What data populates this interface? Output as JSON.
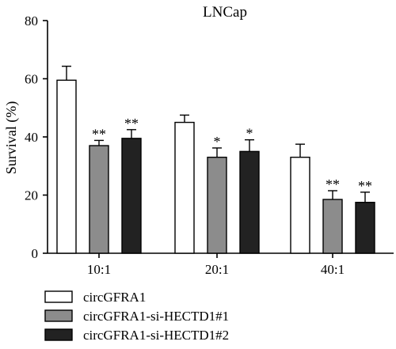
{
  "chart_data": {
    "type": "bar",
    "title": "LNCap",
    "xlabel": "",
    "ylabel": "Survival (%)",
    "ylim": [
      0,
      80
    ],
    "yticks": [
      0,
      20,
      40,
      60,
      80
    ],
    "categories": [
      "10:1",
      "20:1",
      "40:1"
    ],
    "series": [
      {
        "name": "circGFRA1",
        "color": "#ffffff",
        "values": [
          59.5,
          45.0,
          33.0
        ],
        "errors": [
          4.8,
          2.5,
          4.5
        ],
        "annotations": [
          "",
          "",
          ""
        ]
      },
      {
        "name": "circGFRA1-si-HECTD1#1",
        "color": "#8c8c8c",
        "values": [
          37.0,
          33.0,
          18.5
        ],
        "errors": [
          1.8,
          3.2,
          3.0
        ],
        "annotations": [
          "**",
          "*",
          "**"
        ]
      },
      {
        "name": "circGFRA1-si-HECTD1#2",
        "color": "#222222",
        "values": [
          39.5,
          35.0,
          17.5
        ],
        "errors": [
          3.0,
          4.0,
          3.5
        ],
        "annotations": [
          "**",
          "*",
          "**"
        ]
      }
    ],
    "legend": "bottom-left",
    "grid": false
  }
}
